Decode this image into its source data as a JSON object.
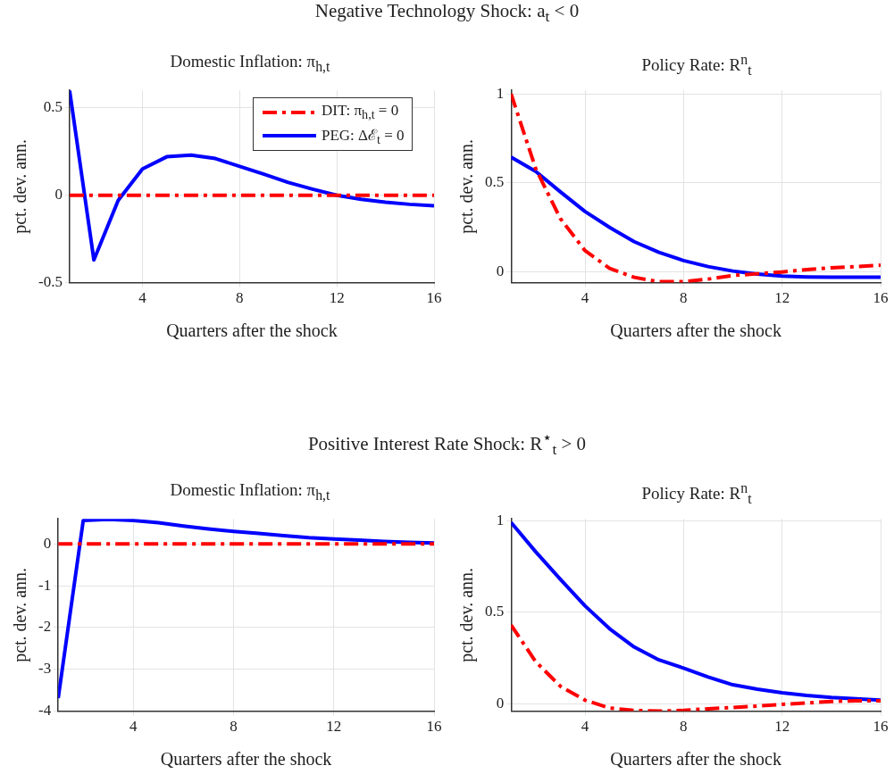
{
  "chart_data": [
    {
      "type": "line",
      "title": "Domestic Inflation: π$_{h,t}$",
      "annotations": [
        "Negative Technology Shock: a$_{t}$ < 0"
      ],
      "xlabel": "Quarters after the shock",
      "ylabel": "pct. dev. ann.",
      "x": [
        1,
        2,
        3,
        4,
        5,
        6,
        7,
        8,
        9,
        10,
        11,
        12,
        13,
        14,
        15,
        16
      ],
      "xlim": [
        1,
        16
      ],
      "xticks": [
        4,
        8,
        12,
        16
      ],
      "ylim": [
        -0.5,
        0.6
      ],
      "yticks": [
        -0.5,
        0,
        0.5
      ],
      "grid": true,
      "legend": "top right",
      "series": [
        {
          "name": "DIT: π$_{h,t}$ = 0",
          "color": "#ff0000",
          "line_style": "dashed",
          "values": [
            0,
            0,
            0,
            0,
            0,
            0,
            0,
            0,
            0,
            0,
            0,
            0,
            0,
            0,
            0,
            0
          ]
        },
        {
          "name": "PEG: Δℰ$_{t}$ = 0",
          "color": "#0000ff",
          "line_style": "solid",
          "values": [
            0.6,
            -0.37,
            -0.03,
            0.15,
            0.22,
            0.23,
            0.21,
            0.165,
            0.12,
            0.073,
            0.035,
            0,
            -0.023,
            -0.04,
            -0.052,
            -0.06
          ]
        }
      ]
    },
    {
      "type": "line",
      "title": "Policy Rate: R$^{n}$$_{t}$",
      "xlabel": "Quarters after the shock",
      "ylabel": "pct. dev. ann.",
      "x": [
        1,
        2,
        3,
        4,
        5,
        6,
        7,
        8,
        9,
        10,
        11,
        12,
        13,
        14,
        15,
        16
      ],
      "xlim": [
        1,
        16
      ],
      "xticks": [
        4,
        8,
        12,
        16
      ],
      "ylim": [
        -0.06,
        1.02
      ],
      "yticks": [
        0,
        0.5,
        1
      ],
      "grid": true,
      "series": [
        {
          "color": "#ff0000",
          "line_style": "dashed",
          "values": [
            1.0,
            0.58,
            0.3,
            0.12,
            0.02,
            -0.03,
            -0.055,
            -0.055,
            -0.04,
            -0.02,
            -0.01,
            0,
            0.013,
            0.023,
            0.03,
            0.038
          ]
        },
        {
          "color": "#0000ff",
          "line_style": "solid",
          "values": [
            0.645,
            0.565,
            0.45,
            0.34,
            0.25,
            0.17,
            0.11,
            0.064,
            0.03,
            0.005,
            -0.012,
            -0.023,
            -0.028,
            -0.03,
            -0.03,
            -0.03
          ]
        }
      ]
    },
    {
      "type": "line",
      "title": "Domestic Inflation: π$_{h,t}$",
      "annotations": [
        "Positive Interest Rate Shock: R$^{⋆}$$_{t}$ > 0"
      ],
      "xlabel": "Quarters after the shock",
      "ylabel": "pct. dev. ann.",
      "x": [
        1,
        2,
        3,
        4,
        5,
        6,
        7,
        8,
        9,
        10,
        11,
        12,
        13,
        14,
        15,
        16
      ],
      "xlim": [
        1,
        16
      ],
      "xticks": [
        4,
        8,
        12,
        16
      ],
      "ylim": [
        -4,
        0.6
      ],
      "yticks": [
        -4,
        -3,
        -2,
        -1,
        0
      ],
      "grid": true,
      "series": [
        {
          "color": "#ff0000",
          "line_style": "dashed",
          "values": [
            0,
            0,
            0,
            0,
            0,
            0,
            0,
            0,
            0,
            0,
            0,
            0,
            0,
            0,
            0,
            0
          ]
        },
        {
          "color": "#0000ff",
          "line_style": "solid",
          "values": [
            -3.69,
            0.56,
            0.59,
            0.56,
            0.51,
            0.43,
            0.36,
            0.3,
            0.25,
            0.2,
            0.15,
            0.12,
            0.09,
            0.06,
            0.04,
            0.02
          ]
        }
      ]
    },
    {
      "type": "line",
      "title": "Policy Rate: R$^{n}$$_{t}$",
      "xlabel": "Quarters after the shock",
      "ylabel": "pct. dev. ann.",
      "x": [
        1,
        2,
        3,
        4,
        5,
        6,
        7,
        8,
        9,
        10,
        11,
        12,
        13,
        14,
        15,
        16
      ],
      "xlim": [
        1,
        16
      ],
      "xticks": [
        4,
        8,
        12,
        16
      ],
      "ylim": [
        -0.04,
        1.01
      ],
      "yticks": [
        0,
        0.5,
        1
      ],
      "grid": true,
      "series": [
        {
          "color": "#ff0000",
          "line_style": "dashed",
          "values": [
            0.43,
            0.23,
            0.096,
            0.02,
            -0.023,
            -0.036,
            -0.04,
            -0.036,
            -0.027,
            -0.02,
            -0.012,
            -0.003,
            0.005,
            0.013,
            0.017,
            0.017
          ]
        },
        {
          "color": "#0000ff",
          "line_style": "solid",
          "values": [
            0.99,
            0.83,
            0.68,
            0.535,
            0.41,
            0.31,
            0.24,
            0.195,
            0.146,
            0.104,
            0.08,
            0.06,
            0.046,
            0.035,
            0.027,
            0.02
          ]
        }
      ]
    }
  ]
}
